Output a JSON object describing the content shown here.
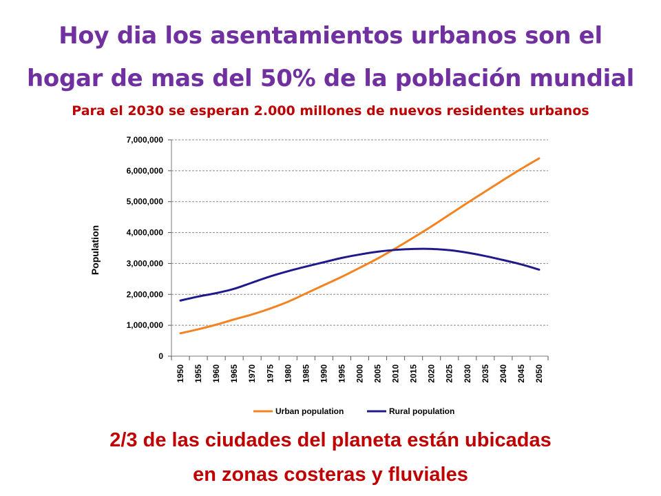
{
  "header": {
    "title_line1": "Hoy dia los asentamientos urbanos son el",
    "title_line2": "hogar  de mas del 50% de la población mundial",
    "subtitle": "Para el 2030 se esperan 2.000 millones de nuevos residentes urbanos"
  },
  "footer": {
    "line1": "2/3 de las ciudades del planeta están ubicadas",
    "line2": "en zonas costeras y fluviales"
  },
  "chart_data": {
    "type": "line",
    "title": "",
    "xlabel": "",
    "ylabel": "Population",
    "x": [
      1950,
      1955,
      1960,
      1965,
      1970,
      1975,
      1980,
      1985,
      1990,
      1995,
      2000,
      2005,
      2010,
      2015,
      2020,
      2025,
      2030,
      2035,
      2040,
      2045,
      2050
    ],
    "x_tick_labels": [
      "1950",
      "1955",
      "1960",
      "1965",
      "1970",
      "1975",
      "1980",
      "1985",
      "1990",
      "1995",
      "2000",
      "2005",
      "2010",
      "2015",
      "2020",
      "2025",
      "2030",
      "2035",
      "2040",
      "2045",
      "2050"
    ],
    "y_tick_labels": [
      "0",
      "1,000,000",
      "2,000,000",
      "3,000,000",
      "4,000,000",
      "5,000,000",
      "6,000,000",
      "7,000,000"
    ],
    "ylim": [
      0,
      7000000
    ],
    "grid": "horizontal dashed",
    "legend_position": "bottom",
    "series": [
      {
        "name": "Urban population",
        "color": "#f58220",
        "values": [
          740000,
          870000,
          1020000,
          1190000,
          1350000,
          1540000,
          1760000,
          2030000,
          2300000,
          2570000,
          2860000,
          3160000,
          3490000,
          3840000,
          4200000,
          4580000,
          4960000,
          5330000,
          5700000,
          6060000,
          6400000
        ]
      },
      {
        "name": "Rural population",
        "color": "#1f1a8c",
        "values": [
          1800000,
          1930000,
          2040000,
          2180000,
          2380000,
          2580000,
          2750000,
          2900000,
          3040000,
          3180000,
          3290000,
          3380000,
          3440000,
          3470000,
          3470000,
          3430000,
          3350000,
          3240000,
          3110000,
          2970000,
          2800000
        ]
      }
    ]
  }
}
